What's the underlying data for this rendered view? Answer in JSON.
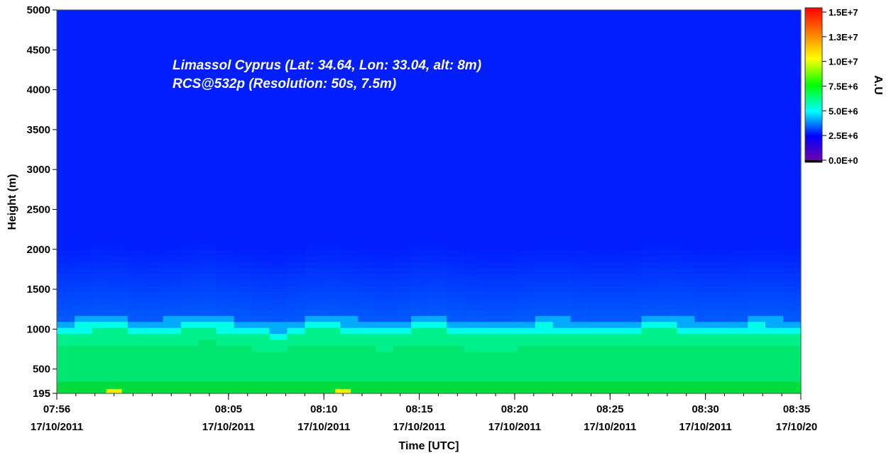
{
  "chart_data": {
    "type": "heatmap",
    "annotations": [
      "Limassol Cyprus (Lat: 34.64, Lon: 33.04, alt: 8m)",
      "RCS@532p (Resolution: 50s, 7.5m)"
    ],
    "xlabel": "Time [UTC]",
    "ylabel": "Height (m)",
    "x_ticks": [
      {
        "time": "07:56",
        "date": "17/10/2011"
      },
      {
        "time": "08:05",
        "date": "17/10/2011"
      },
      {
        "time": "08:10",
        "date": "17/10/2011"
      },
      {
        "time": "08:15",
        "date": "17/10/2011"
      },
      {
        "time": "08:20",
        "date": "17/10/2011"
      },
      {
        "time": "08:25",
        "date": "17/10/2011"
      },
      {
        "time": "08:30",
        "date": "17/10/2011"
      },
      {
        "time": "08:35",
        "date": "17/10/20"
      }
    ],
    "y_ticks": [
      "5000",
      "4500",
      "4000",
      "3500",
      "3000",
      "2500",
      "2000",
      "1500",
      "1000",
      "500",
      "195"
    ],
    "ylim": [
      195,
      5000
    ],
    "colorbar": {
      "label": "A.U",
      "ticks": [
        "1.5E+7",
        "1.3E+7",
        "1.0E+7",
        "7.5E+6",
        "5.0E+6",
        "2.5E+6",
        "0.0E+0"
      ],
      "range": [
        0,
        15000000
      ]
    },
    "layer_top_height_m": [
      1000,
      1020,
      1040,
      1035,
      1000,
      980,
      1010,
      1040,
      1070,
      1020,
      990,
      960,
      940,
      980,
      1030,
      1050,
      1010,
      980,
      960,
      990,
      1030,
      1040,
      1000,
      970,
      950,
      960,
      1000,
      1020,
      1010,
      1000,
      990,
      980,
      1000,
      1030,
      1040,
      1010,
      990,
      980,
      1000,
      1020,
      1010,
      990
    ],
    "near_ground_maxima": [
      {
        "time": "07:59",
        "height_m": 210
      },
      {
        "time": "08:11",
        "height_m": 210
      }
    ]
  }
}
